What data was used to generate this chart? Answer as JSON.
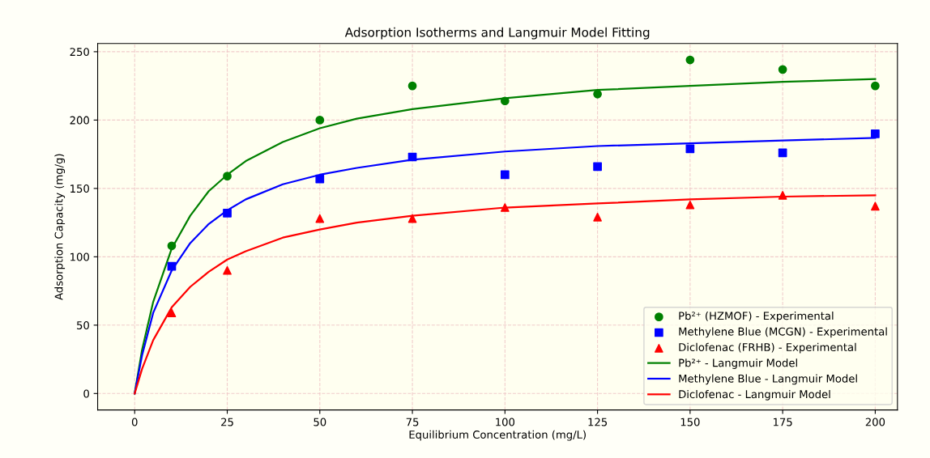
{
  "chart_data": {
    "type": "scatter",
    "title": "Adsorption Isotherms and Langmuir Model Fitting",
    "xlabel": "Equilibrium Concentration (mg/L)",
    "ylabel": "Adsorption Capacity (mg/g)",
    "xlim": [
      -10,
      206
    ],
    "ylim": [
      -12,
      256
    ],
    "xticks": [
      0,
      25,
      50,
      75,
      100,
      125,
      150,
      175,
      200
    ],
    "yticks": [
      0,
      50,
      100,
      150,
      200,
      250
    ],
    "grid": true,
    "legend": "bottom right",
    "series": [
      {
        "name": "Pb²⁺ (HZMOF) - Experimental",
        "marker": "circle",
        "color": "#008000",
        "x": [
          10,
          25,
          50,
          75,
          100,
          125,
          150,
          175,
          200
        ],
        "values": [
          108,
          159,
          200,
          225,
          214,
          219,
          244,
          237,
          225
        ]
      },
      {
        "name": "Methylene Blue (MCGN) - Experimental",
        "marker": "square",
        "color": "#0000ff",
        "x": [
          10,
          25,
          50,
          75,
          100,
          125,
          150,
          175,
          200
        ],
        "values": [
          93,
          132,
          157,
          173,
          160,
          166,
          179,
          176,
          190
        ]
      },
      {
        "name": "Diclofenac (FRHB) - Experimental",
        "marker": "triangle",
        "color": "#ff0000",
        "x": [
          10,
          25,
          50,
          75,
          100,
          125,
          150,
          175,
          200
        ],
        "values": [
          59,
          90,
          128,
          128,
          136,
          129,
          138,
          145,
          137
        ]
      },
      {
        "name": "Pb²⁺ - Langmuir Model",
        "type": "line",
        "marker": "none",
        "color": "#008000",
        "x": [
          0,
          2,
          5,
          10,
          15,
          20,
          25,
          30,
          40,
          50,
          60,
          75,
          100,
          125,
          150,
          175,
          200
        ],
        "values": [
          0,
          32,
          67,
          106,
          130,
          148,
          160,
          170,
          184,
          194,
          201,
          208,
          216,
          222,
          225,
          228,
          230
        ]
      },
      {
        "name": "Methylene Blue - Langmuir Model",
        "type": "line",
        "marker": "none",
        "color": "#0000ff",
        "x": [
          0,
          2,
          5,
          10,
          15,
          20,
          25,
          30,
          40,
          50,
          60,
          75,
          100,
          125,
          150,
          175,
          200
        ],
        "values": [
          0,
          28,
          59,
          90,
          110,
          124,
          134,
          142,
          153,
          160,
          165,
          171,
          177,
          181,
          183,
          185,
          187
        ]
      },
      {
        "name": "Diclofenac - Langmuir Model",
        "type": "line",
        "marker": "none",
        "color": "#ff0000",
        "x": [
          0,
          2,
          5,
          10,
          15,
          20,
          25,
          30,
          40,
          50,
          60,
          75,
          100,
          125,
          150,
          175,
          200
        ],
        "values": [
          0,
          18,
          39,
          63,
          78,
          89,
          98,
          104,
          114,
          120,
          125,
          130,
          136,
          139,
          142,
          144,
          145
        ]
      }
    ]
  }
}
